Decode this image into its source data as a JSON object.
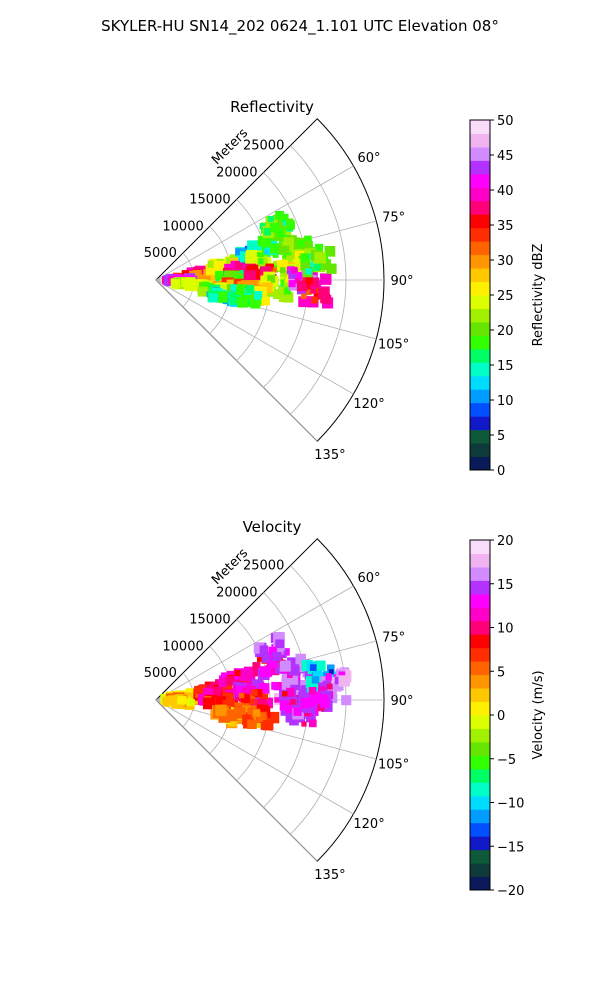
{
  "figure": {
    "title": "SKYLER-HU  SN14_202  0624_1.101 UTC Elevation 08°"
  },
  "chart_data": [
    {
      "type": "heatmap",
      "projection": "polar-sector",
      "title": "Reflectivity",
      "radial_axis_label": "Meters",
      "radial_ticks": [
        5000,
        10000,
        15000,
        20000,
        25000
      ],
      "radial_tick_labels": [
        "5000",
        "10000",
        "15000",
        "20000",
        "25000"
      ],
      "rlim": [
        0,
        30000
      ],
      "angle_ticks_deg": [
        60,
        75,
        90,
        105,
        120,
        135
      ],
      "angle_tick_labels": [
        "60°",
        "75°",
        "90°",
        "105°",
        "120°",
        "135°"
      ],
      "azimuth_range_deg": [
        45,
        135
      ],
      "grid": true,
      "colorbar": {
        "label": "Reflectivity dBZ",
        "range": [
          0,
          50
        ],
        "ticks": [
          0,
          5,
          10,
          15,
          20,
          25,
          30,
          35,
          40,
          45,
          50
        ],
        "tick_labels": [
          "0",
          "5",
          "10",
          "15",
          "20",
          "25",
          "30",
          "35",
          "40",
          "45",
          "50"
        ],
        "colors": [
          "#0a1a5a",
          "#0f3a3a",
          "#0d5a3a",
          "#1018c8",
          "#0050ff",
          "#009cff",
          "#00dcff",
          "#00ffc8",
          "#00ff64",
          "#32ff00",
          "#64e600",
          "#a0f000",
          "#dcff00",
          "#fff000",
          "#ffc800",
          "#ff9600",
          "#ff6400",
          "#ff2d00",
          "#ff0000",
          "#ff0078",
          "#ff00c8",
          "#ff00ff",
          "#b432ff",
          "#d28cff",
          "#f0b4f0",
          "#fadcfa"
        ]
      },
      "echo_cells": [
        {
          "az": 82,
          "r": 4500,
          "value": 36
        },
        {
          "az": 87,
          "r": 6000,
          "value": 28
        },
        {
          "az": 92,
          "r": 3000,
          "value": 40
        },
        {
          "az": 98,
          "r": 4000,
          "value": 22
        },
        {
          "az": 78,
          "r": 9000,
          "value": 24
        },
        {
          "az": 84,
          "r": 11000,
          "value": 38
        },
        {
          "az": 90,
          "r": 10000,
          "value": 18
        },
        {
          "az": 95,
          "r": 9500,
          "value": 30
        },
        {
          "az": 100,
          "r": 8000,
          "value": 20
        },
        {
          "az": 104,
          "r": 9000,
          "value": 14
        },
        {
          "az": 75,
          "r": 13000,
          "value": 12
        },
        {
          "az": 80,
          "r": 14500,
          "value": 22
        },
        {
          "az": 88,
          "r": 14000,
          "value": 35
        },
        {
          "az": 93,
          "r": 16000,
          "value": 20
        },
        {
          "az": 97,
          "r": 13500,
          "value": 26
        },
        {
          "az": 72,
          "r": 16500,
          "value": 16
        },
        {
          "az": 78,
          "r": 19000,
          "value": 20
        },
        {
          "az": 85,
          "r": 18000,
          "value": 24
        },
        {
          "az": 90,
          "r": 19500,
          "value": 42
        },
        {
          "az": 94,
          "r": 21000,
          "value": 36
        },
        {
          "az": 83,
          "r": 21500,
          "value": 18
        },
        {
          "az": 66,
          "r": 17500,
          "value": 18
        },
        {
          "az": 100,
          "r": 12000,
          "value": 16
        }
      ]
    },
    {
      "type": "heatmap",
      "projection": "polar-sector",
      "title": "Velocity",
      "radial_axis_label": "Meters",
      "radial_ticks": [
        5000,
        10000,
        15000,
        20000,
        25000
      ],
      "radial_tick_labels": [
        "5000",
        "10000",
        "15000",
        "20000",
        "25000"
      ],
      "rlim": [
        0,
        30000
      ],
      "angle_ticks_deg": [
        60,
        75,
        90,
        105,
        120,
        135
      ],
      "angle_tick_labels": [
        "60°",
        "75°",
        "90°",
        "105°",
        "120°",
        "135°"
      ],
      "azimuth_range_deg": [
        45,
        135
      ],
      "grid": true,
      "colorbar": {
        "label": "Velocity (m/s)",
        "range": [
          -20,
          20
        ],
        "ticks": [
          -20,
          -15,
          -10,
          -5,
          0,
          5,
          10,
          15,
          20
        ],
        "tick_labels": [
          "−20",
          "−15",
          "−10",
          "−5",
          "0",
          "5",
          "10",
          "15",
          "20"
        ],
        "colors": [
          "#0a1a5a",
          "#0f3a3a",
          "#0d5a3a",
          "#1018c8",
          "#0050ff",
          "#009cff",
          "#00dcff",
          "#00ffc8",
          "#00ff64",
          "#32ff00",
          "#64e600",
          "#a0f000",
          "#dcff00",
          "#fff000",
          "#ffc800",
          "#ff9600",
          "#ff6400",
          "#ff2d00",
          "#ff0000",
          "#ff0078",
          "#ff00c8",
          "#ff00ff",
          "#b432ff",
          "#d28cff",
          "#f0b4f0",
          "#fadcfa"
        ]
      },
      "echo_cells": [
        {
          "az": 82,
          "r": 3000,
          "value": -2
        },
        {
          "az": 88,
          "r": 3500,
          "value": 2
        },
        {
          "az": 95,
          "r": 3000,
          "value": 1
        },
        {
          "az": 80,
          "r": 7000,
          "value": 7
        },
        {
          "az": 86,
          "r": 8000,
          "value": 9
        },
        {
          "az": 92,
          "r": 8500,
          "value": 6
        },
        {
          "az": 76,
          "r": 11000,
          "value": 10
        },
        {
          "az": 84,
          "r": 12500,
          "value": 11
        },
        {
          "az": 90,
          "r": 13000,
          "value": 9
        },
        {
          "az": 99,
          "r": 11000,
          "value": 4
        },
        {
          "az": 103,
          "r": 9500,
          "value": 2
        },
        {
          "az": 100,
          "r": 14000,
          "value": 5
        },
        {
          "az": 72,
          "r": 15500,
          "value": 11
        },
        {
          "az": 86,
          "r": 17500,
          "value": 14
        },
        {
          "az": 91,
          "r": 18500,
          "value": 12
        },
        {
          "az": 95,
          "r": 19500,
          "value": 13
        },
        {
          "az": 78,
          "r": 19000,
          "value": 14
        },
        {
          "az": 81,
          "r": 22000,
          "value": -11
        },
        {
          "az": 86,
          "r": 23500,
          "value": 15
        },
        {
          "az": 90,
          "r": 21500,
          "value": 12
        },
        {
          "az": 66,
          "r": 16500,
          "value": 14
        }
      ]
    }
  ]
}
